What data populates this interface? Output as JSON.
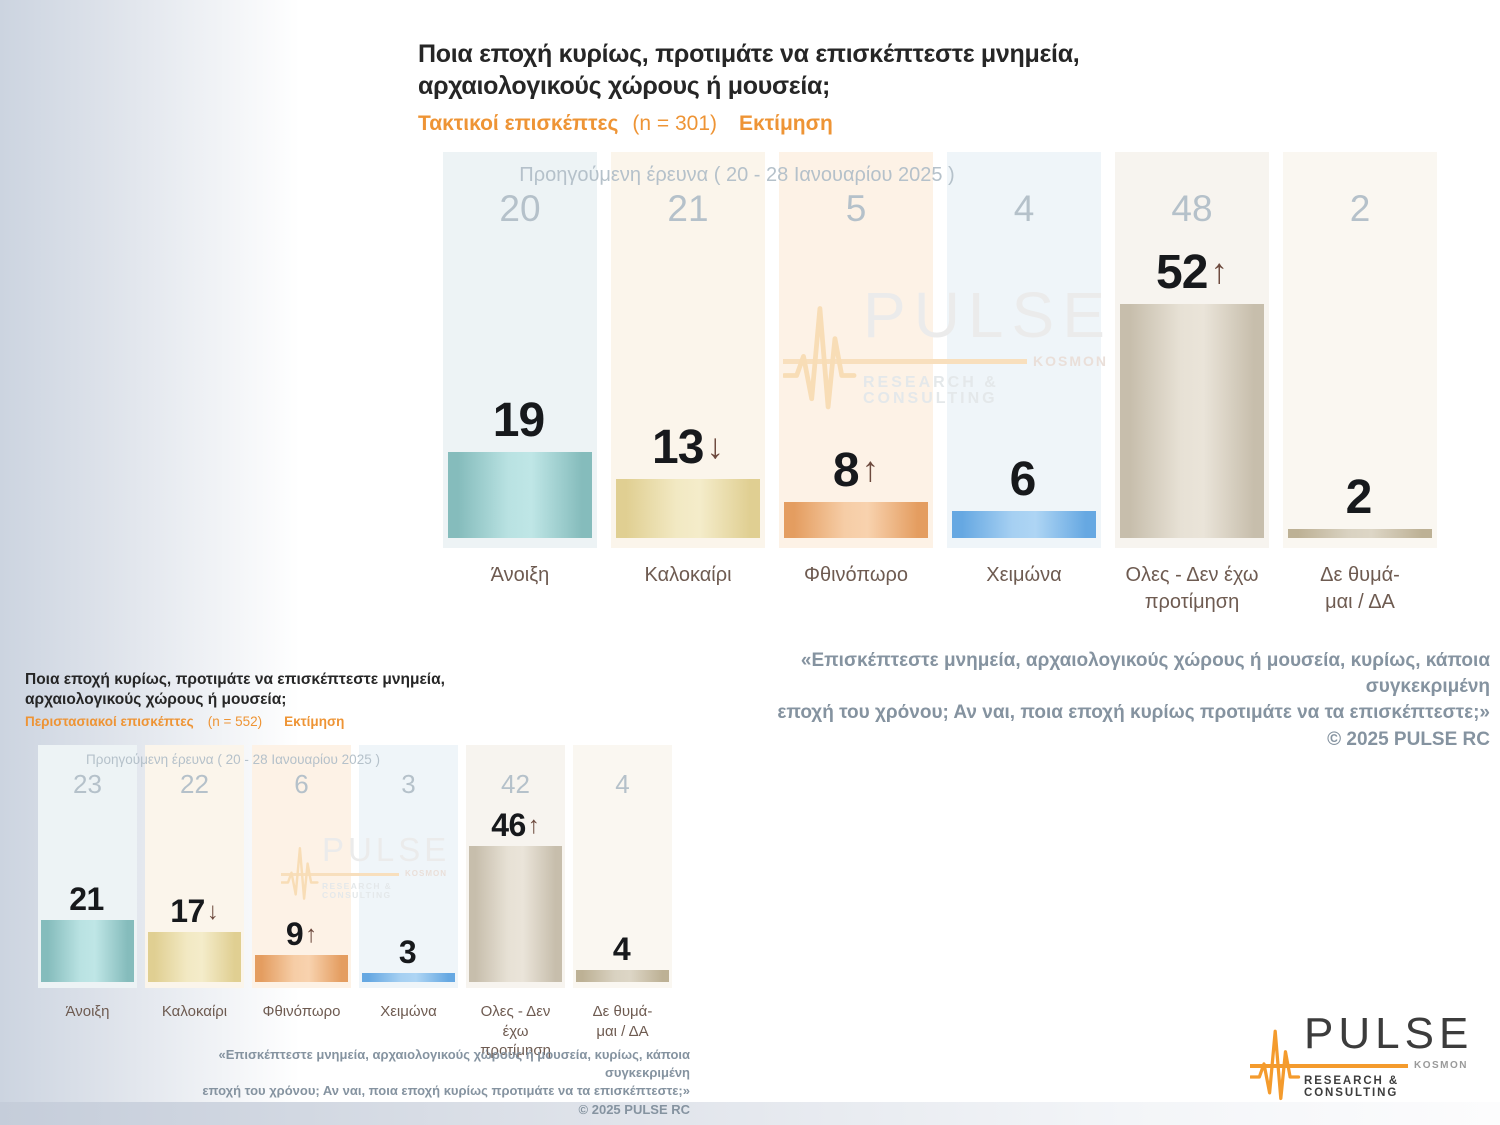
{
  "ui": {
    "chart1": {
      "title": "Ποια εποχή κυρίως, προτιμάτε να επισκέπτεστε μνημεία,\nαρχαιολογικούς χώρους ή μουσεία;",
      "subtitle_group": "Τακτικοί επισκέπτες",
      "subtitle_sample": "(n = 301)",
      "subtitle_metric": "Εκτίμηση",
      "prev_survey_label": "Προηγούμενη έρευνα ( 20 - 28 Ιανουαρίου 2025 )",
      "category_labels": [
        "Άνοιξη",
        "Καλοκαίρι",
        "Φθινόπωρο",
        "Χειμώνα",
        "Ολες - Δεν έχω\nπροτίμηση",
        "Δε θυμά-\nμαι / ΔΑ"
      ],
      "arrows": [
        "",
        "↓",
        "↑",
        "",
        "↑",
        ""
      ],
      "footnote": "«Επισκέπτεστε μνημεία, αρχαιολογικούς χώρους ή μουσεία, κυρίως, κάποια συγκεκριμένη\nεποχή του χρόνου; Αν ναι, ποια εποχή κυρίως προτιμάτε να τα επισκέπτεστε;»",
      "copyright": "©  2025  PULSE RC"
    },
    "chart2": {
      "title": "Ποια εποχή κυρίως, προτιμάτε να επισκέπτεστε μνημεία,\nαρχαιολογικούς χώρους ή μουσεία;",
      "subtitle_group": "Περιστασιακοί επισκέπτες",
      "subtitle_sample": "(n = 552)",
      "subtitle_metric": "Εκτίμηση",
      "prev_survey_label": "Προηγούμενη έρευνα ( 20 - 28 Ιανουαρίου 2025 )",
      "category_labels": [
        "Άνοιξη",
        "Καλοκαίρι",
        "Φθινόπωρο",
        "Χειμώνα",
        "Ολες - Δεν έχω\nπροτίμηση",
        "Δε θυμά-\nμαι / ΔΑ"
      ],
      "arrows": [
        "",
        "↓",
        "↑",
        "",
        "↑",
        ""
      ],
      "footnote": "«Επισκέπτεστε μνημεία, αρχαιολογικούς χώρους ή μουσεία, κυρίως, κάποια συγκεκριμένη\nεποχή του χρόνου; Αν ναι, ποια εποχή κυρίως προτιμάτε να τα επισκέπτεστε;»",
      "copyright": "©  2025  PULSE RC"
    },
    "logo": {
      "brand": "PULSE",
      "sub_brand": "KOSMON",
      "tagline": "RESEARCH & CONSULTING"
    },
    "colors": {
      "accent_orange": "#ee9435",
      "arrow_brown": "#6d4a3e",
      "prev_gray": "#b5c1ca",
      "bar_teal": "#8fc4c4",
      "bar_yellow": "#e8dbab",
      "bar_orange": "#edb27e",
      "bar_blue": "#7db7ea",
      "bar_beige": "#d5cec0",
      "bar_tan": "#cfc5ad"
    }
  },
  "chart_data": [
    {
      "type": "bar",
      "title": "Ποια εποχή κυρίως, προτιμάτε να επισκέπτεστε μνημεία, αρχαιολογικούς χώρους ή μουσεία;",
      "subtitle": "Τακτικοί επισκέπτες (n = 301) — Εκτίμηση",
      "categories": [
        "Άνοιξη",
        "Καλοκαίρι",
        "Φθινόπωρο",
        "Χειμώνα",
        "Ολες - Δεν έχω προτίμηση",
        "Δε θυμάμαι / ΔΑ"
      ],
      "series": [
        {
          "name": "Εκτίμηση",
          "values": [
            19,
            13,
            8,
            6,
            52,
            2
          ]
        },
        {
          "name": "Προηγούμενη έρευνα ( 20 - 28 Ιανουαρίου 2025 )",
          "values": [
            20,
            21,
            5,
            4,
            48,
            2
          ]
        }
      ],
      "trend_vs_previous": [
        "",
        "down",
        "up",
        "",
        "up",
        ""
      ],
      "xlabel": "",
      "ylabel": "",
      "ylim": [
        0,
        60
      ],
      "grid": false,
      "legend_position": "none"
    },
    {
      "type": "bar",
      "title": "Ποια εποχή κυρίως, προτιμάτε να επισκέπτεστε μνημεία, αρχαιολογικούς χώρους ή μουσεία;",
      "subtitle": "Περιστασιακοί επισκέπτες (n = 552) — Εκτίμηση",
      "categories": [
        "Άνοιξη",
        "Καλοκαίρι",
        "Φθινόπωρο",
        "Χειμώνα",
        "Ολες - Δεν έχω προτίμηση",
        "Δε θυμάμαι / ΔΑ"
      ],
      "series": [
        {
          "name": "Εκτίμηση",
          "values": [
            21,
            17,
            9,
            3,
            46,
            4
          ]
        },
        {
          "name": "Προηγούμενη έρευνα ( 20 - 28 Ιανουαρίου 2025 )",
          "values": [
            23,
            22,
            6,
            3,
            42,
            4
          ]
        }
      ],
      "trend_vs_previous": [
        "",
        "down",
        "up",
        "",
        "up",
        ""
      ],
      "xlabel": "",
      "ylabel": "",
      "ylim": [
        0,
        60
      ],
      "grid": false,
      "legend_position": "none"
    }
  ]
}
